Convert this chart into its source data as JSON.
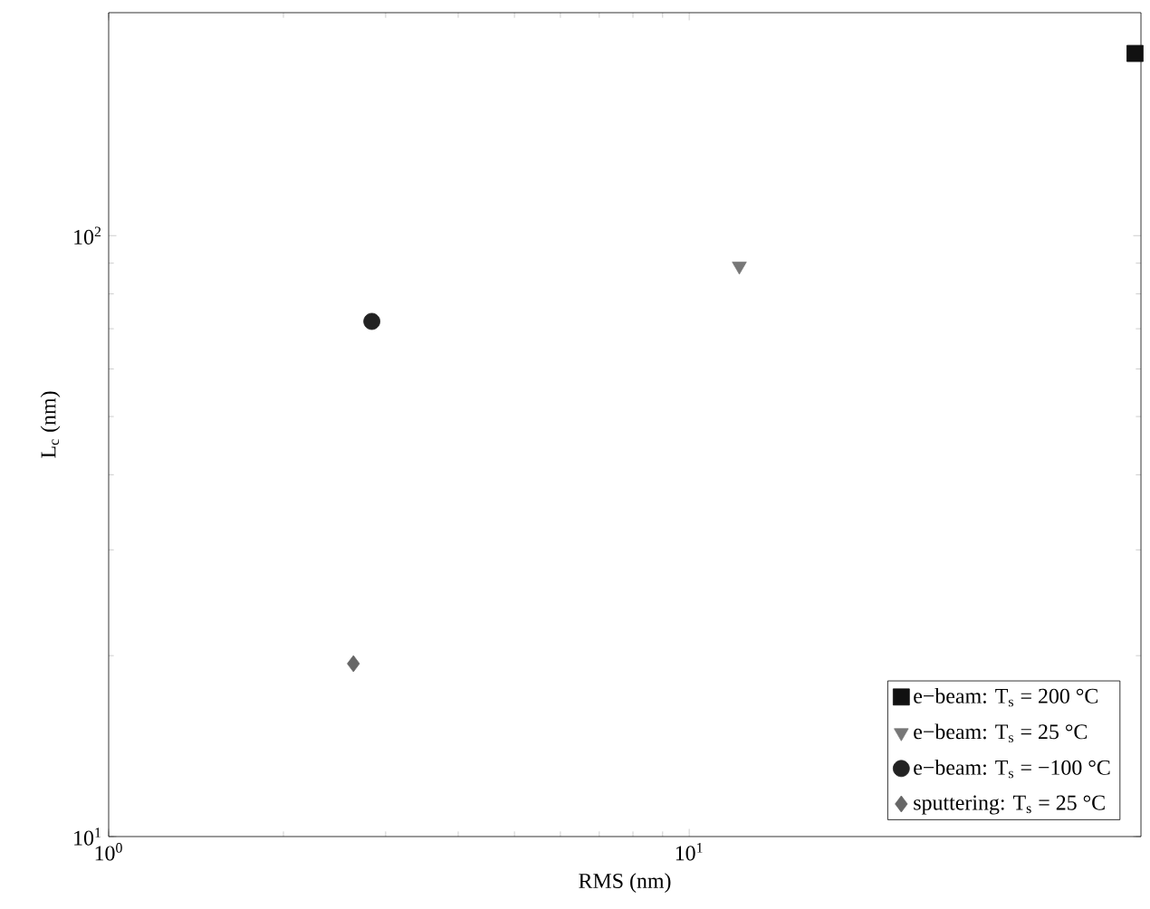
{
  "chart_data": {
    "type": "scatter",
    "xlabel": "RMS (nm)",
    "ylabel": "L$_{c}$ (nm)",
    "log": "xy",
    "grid": false,
    "legend": "bottom right",
    "xlim": [
      1,
      60
    ],
    "ylim": [
      10,
      235
    ],
    "xticks": [
      {
        "value": 1,
        "label": "10$^{0}$"
      },
      {
        "value": 10,
        "label": "10$^{1}$"
      }
    ],
    "yticks": [
      {
        "value": 10,
        "label": "10$^{1}$"
      },
      {
        "value": 100,
        "label": "10$^{2}$"
      }
    ],
    "series": [
      {
        "name": "e−beam: T$_{s}$ = 200 °C",
        "color": "#111111",
        "marker": "square",
        "x": [
          58.6
        ],
        "values": [
          201
        ]
      },
      {
        "name": "e−beam: T$_{s}$ = 25 °C",
        "color": "#777777",
        "marker": "triangle",
        "x": [
          12.2
        ],
        "values": [
          89
        ]
      },
      {
        "name": "e−beam: T$_{s}$ = −100 °C",
        "color": "#222222",
        "marker": "circle",
        "x": [
          2.84
        ],
        "values": [
          72
        ]
      },
      {
        "name": "sputtering: T$_{s}$ = 25 °C",
        "color": "#666666",
        "marker": "diamond",
        "x": [
          2.64
        ],
        "values": [
          19.4
        ]
      }
    ]
  }
}
